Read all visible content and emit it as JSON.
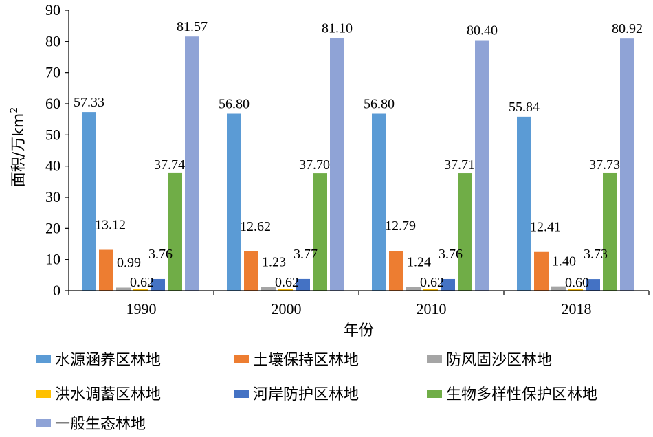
{
  "chart_data": {
    "type": "bar",
    "title": "",
    "xlabel": "年份",
    "ylabel": "面积/万km",
    "ylabel_sup": "2",
    "ylim": [
      0,
      90
    ],
    "yticks": [
      0,
      10,
      20,
      30,
      40,
      50,
      60,
      70,
      80,
      90
    ],
    "categories": [
      "1990",
      "2000",
      "2010",
      "2018"
    ],
    "grid": false,
    "legend_position": "bottom",
    "series": [
      {
        "name": "水源涵养区林地",
        "color": "#5B9BD5",
        "values": [
          57.33,
          56.8,
          56.8,
          55.84
        ],
        "labels": [
          "57.33",
          "56.80",
          "56.80",
          "55.84"
        ]
      },
      {
        "name": "土壤保持区林地",
        "color": "#ED7D31",
        "values": [
          13.12,
          12.62,
          12.79,
          12.41
        ],
        "labels": [
          "13.12",
          "12.62",
          "12.79",
          "12.41"
        ]
      },
      {
        "name": "防风固沙区林地",
        "color": "#A5A5A5",
        "values": [
          0.99,
          1.23,
          1.24,
          1.4
        ],
        "labels": [
          "0.99",
          "1.23",
          "1.24",
          "1.40"
        ]
      },
      {
        "name": "洪水调蓄区林地",
        "color": "#FFC000",
        "values": [
          0.62,
          0.62,
          0.62,
          0.6
        ],
        "labels": [
          "0.62",
          "0.62",
          "0.62",
          "0.60"
        ]
      },
      {
        "name": "河岸防护区林地",
        "color": "#4472C4",
        "values": [
          3.76,
          3.77,
          3.76,
          3.73
        ],
        "labels": [
          "3.76",
          "3.77",
          "3.76",
          "3.73"
        ]
      },
      {
        "name": "生物多样性保护区林地",
        "color": "#70AD47",
        "values": [
          37.74,
          37.7,
          37.71,
          37.73
        ],
        "labels": [
          "37.74",
          "37.70",
          "37.71",
          "37.73"
        ]
      },
      {
        "name": "一般生态林地",
        "color": "#8FA3D6",
        "values": [
          81.57,
          81.1,
          80.4,
          80.92
        ],
        "labels": [
          "81.57",
          "81.10",
          "80.40",
          "80.92"
        ]
      }
    ]
  }
}
